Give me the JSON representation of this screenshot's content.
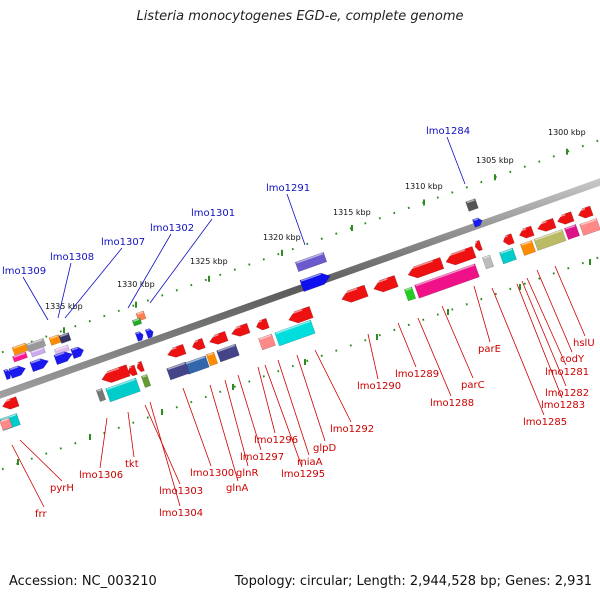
{
  "title": "Listeria monocytogenes EGD-e, complete genome",
  "footer": {
    "accession": "Accession: NC_003210",
    "summary": "Topology: circular; Length: 2,944,528 bp; Genes: 2,931"
  },
  "colors": {
    "forward_gene_label": "#1010c0",
    "reverse_gene_label": "#cc0000",
    "backbone": "#8a8a8a",
    "ruler_tick": "#2e8b22"
  },
  "ruler_labels": [
    "1300 kbp",
    "1305 kbp",
    "1310 kbp",
    "1315 kbp",
    "1320 kbp",
    "1325 kbp",
    "1330 kbp",
    "1335 kbp"
  ],
  "forward_gene_labels": [
    "lmo1284",
    "lmo1291",
    "lmo1301",
    "lmo1302",
    "lmo1307",
    "lmo1308",
    "lmo1309"
  ],
  "reverse_gene_labels": [
    "hslU",
    "codY",
    "lmo1281",
    "lmo1282",
    "lmo1283",
    "lmo1285",
    "parE",
    "parC",
    "lmo1288",
    "lmo1289",
    "lmo1290",
    "lmo1292",
    "glpD",
    "miaA",
    "lmo1295",
    "lmo1296",
    "lmo1297",
    "glnR",
    "glnA",
    "lmo1300",
    "lmo1303",
    "lmo1304",
    "tkt",
    "lmo1306",
    "pyrH",
    "frr"
  ]
}
